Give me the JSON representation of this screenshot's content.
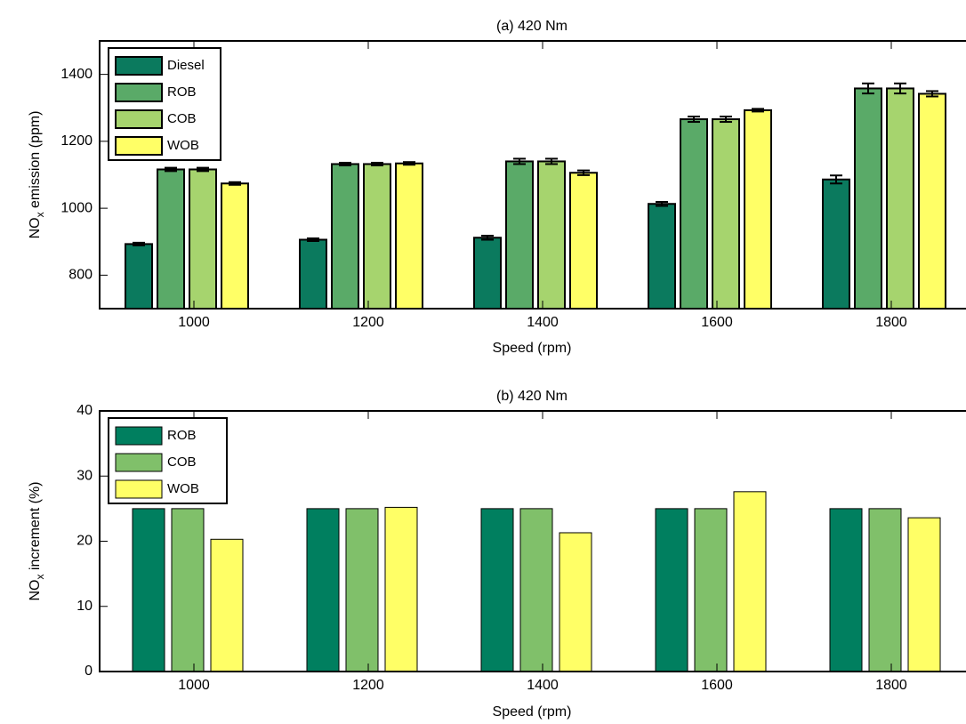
{
  "chart_data": [
    {
      "type": "bar",
      "title": "(a) 420 Nm",
      "xlabel": "Speed (rpm)",
      "ylabel": [
        "NO",
        "x",
        " emission (ppm)"
      ],
      "categories": [
        "1000",
        "1200",
        "1400",
        "1600",
        "1800"
      ],
      "series": [
        {
          "name": "Diesel",
          "color": "#0b7a5e",
          "values": [
            893,
            906,
            912,
            1013,
            1086
          ],
          "errors": [
            4,
            4,
            6,
            6,
            12
          ]
        },
        {
          "name": "ROB",
          "color": "#5aaa68",
          "values": [
            1116,
            1132,
            1140,
            1266,
            1358
          ],
          "errors": [
            5,
            4,
            8,
            8,
            15
          ]
        },
        {
          "name": "COB",
          "color": "#a6d46e",
          "values": [
            1116,
            1132,
            1140,
            1266,
            1358
          ],
          "errors": [
            5,
            4,
            8,
            8,
            15
          ]
        },
        {
          "name": "WOB",
          "color": "#ffff66",
          "values": [
            1074,
            1134,
            1106,
            1293,
            1342
          ],
          "errors": [
            4,
            4,
            7,
            4,
            8
          ]
        }
      ],
      "ylim": [
        700,
        1500
      ],
      "yticks": [
        800,
        1000,
        1200,
        1400
      ],
      "legend": "upper left"
    },
    {
      "type": "bar",
      "title": "(b) 420 Nm",
      "xlabel": "Speed (rpm)",
      "ylabel": [
        "NO",
        "x",
        " increment (%)"
      ],
      "categories": [
        "1000",
        "1200",
        "1400",
        "1600",
        "1800"
      ],
      "series": [
        {
          "name": "ROB",
          "color": "#007f5f",
          "values": [
            25,
            25,
            25,
            25,
            25
          ]
        },
        {
          "name": "COB",
          "color": "#80c06a",
          "values": [
            25,
            25,
            25,
            25,
            25
          ]
        },
        {
          "name": "WOB",
          "color": "#ffff66",
          "values": [
            20.3,
            25.2,
            21.3,
            27.6,
            23.6
          ]
        }
      ],
      "ylim": [
        0,
        40
      ],
      "yticks": [
        0,
        10,
        20,
        30,
        40
      ],
      "legend": "upper left"
    }
  ]
}
